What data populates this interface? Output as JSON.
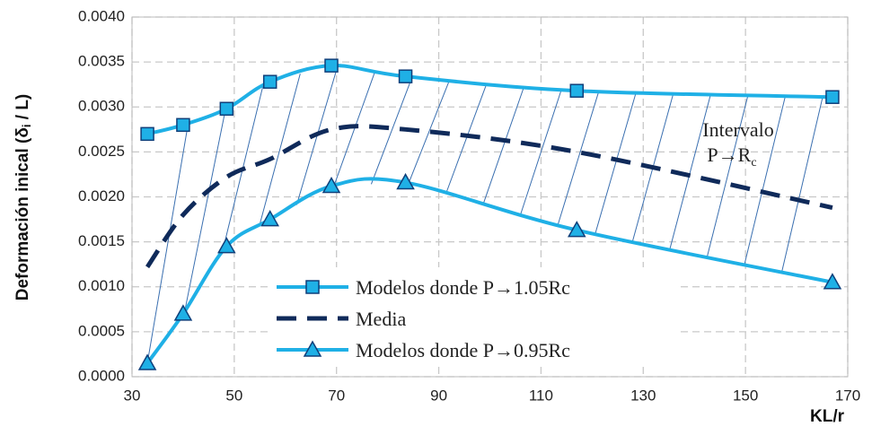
{
  "chart_data": {
    "type": "line",
    "y_label": {
      "main": "Deformación inical (δ",
      "sub": "i",
      "end": " / L)"
    },
    "x_label": "KL/r",
    "annotation": {
      "line1": "Intervalo",
      "line2": "P→R",
      "sub": "c"
    },
    "x": [
      33,
      40,
      48.5,
      57,
      69,
      83.5,
      117,
      167
    ],
    "series": [
      {
        "name": "Modelos donde P→1.05Rc",
        "color": "#1fb0e6",
        "marker": "square",
        "dashed": false,
        "values": [
          0.0027,
          0.0028,
          0.00298,
          0.00328,
          0.00346,
          0.00334,
          0.00318,
          0.00311
        ]
      },
      {
        "name": "Media",
        "color": "#0f2a5a",
        "marker": null,
        "dashed": true,
        "values": [
          0.00122,
          0.0018,
          0.00222,
          0.00242,
          0.00275,
          0.00275,
          0.0025,
          0.00188
        ]
      },
      {
        "name": "Modelos donde P→0.95Rc",
        "color": "#1fb0e6",
        "marker": "triangle",
        "dashed": false,
        "values": [
          0.00015,
          0.0007,
          0.00145,
          0.00175,
          0.00212,
          0.00216,
          0.00163,
          0.00105
        ]
      }
    ],
    "xlim": [
      30,
      170
    ],
    "xticks": [
      30,
      50,
      70,
      90,
      110,
      130,
      150,
      170
    ],
    "ylim": [
      0,
      0.004
    ],
    "yticks": [
      {
        "value": 0,
        "label": "0.0000"
      },
      {
        "value": 0.0005,
        "label": "0.0005"
      },
      {
        "value": 0.001,
        "label": "0.0010"
      },
      {
        "value": 0.0015,
        "label": "0.0015"
      },
      {
        "value": 0.002,
        "label": "0.0020"
      },
      {
        "value": 0.0025,
        "label": "0.0025"
      },
      {
        "value": 0.003,
        "label": "0.0030"
      },
      {
        "value": 0.0035,
        "label": "0.0035"
      },
      {
        "value": 0.004,
        "label": "0.0040"
      }
    ],
    "grid": true
  }
}
